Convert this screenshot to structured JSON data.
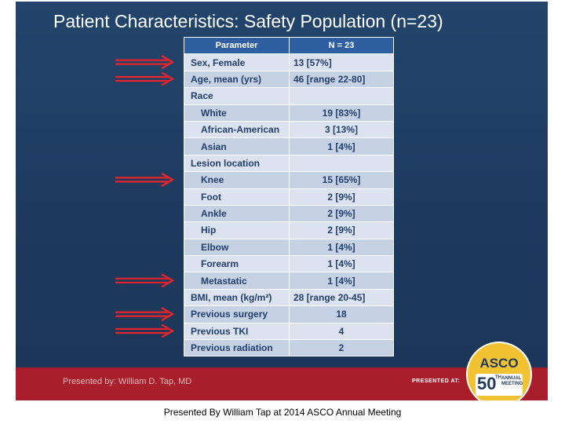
{
  "slide": {
    "title": "Patient Characteristics:  Safety Population (n=23)",
    "table": {
      "headers": {
        "parameter": "Parameter",
        "value": "N = 23"
      },
      "rows": [
        {
          "label": "Sex, Female",
          "value": "13 [57%]",
          "indent": false,
          "value_align": "left"
        },
        {
          "label": "Age, mean (yrs)",
          "value": "46 [range 22-80]",
          "indent": false,
          "value_align": "left"
        },
        {
          "label": "Race",
          "value": "",
          "indent": false,
          "value_align": "center"
        },
        {
          "label": "White",
          "value": "19 [83%]",
          "indent": true,
          "value_align": "center"
        },
        {
          "label": "African-American",
          "value": "3 [13%]",
          "indent": true,
          "value_align": "center"
        },
        {
          "label": "Asian",
          "value": "1 [4%]",
          "indent": true,
          "value_align": "center"
        },
        {
          "label": "Lesion location",
          "value": "",
          "indent": false,
          "value_align": "center"
        },
        {
          "label": "Knee",
          "value": "15 [65%]",
          "indent": true,
          "value_align": "center"
        },
        {
          "label": "Foot",
          "value": "2 [9%]",
          "indent": true,
          "value_align": "center"
        },
        {
          "label": "Ankle",
          "value": "2 [9%]",
          "indent": true,
          "value_align": "center"
        },
        {
          "label": "Hip",
          "value": "2 [9%]",
          "indent": true,
          "value_align": "center"
        },
        {
          "label": "Elbow",
          "value": "1 [4%]",
          "indent": true,
          "value_align": "center"
        },
        {
          "label": "Forearm",
          "value": "1 [4%]",
          "indent": true,
          "value_align": "center"
        },
        {
          "label": "Metastatic",
          "value": "1 [4%]",
          "indent": true,
          "value_align": "center"
        },
        {
          "label": "BMI, mean (kg/m²)",
          "value": "28 [range 20-45]",
          "indent": false,
          "value_align": "left"
        },
        {
          "label": "Previous surgery",
          "value": "18",
          "indent": false,
          "value_align": "center"
        },
        {
          "label": "Previous TKI",
          "value": "4",
          "indent": false,
          "value_align": "center"
        },
        {
          "label": "Previous radiation",
          "value": "2",
          "indent": false,
          "value_align": "center"
        }
      ]
    },
    "arrow_color": "#e8232a",
    "footer": {
      "presented_by": "Presented by: William D. Tap, MD",
      "presented_at": "PRESENTED AT:",
      "asco": {
        "name": "ASCO",
        "number": "50",
        "ordinal": "TH",
        "annual": "ANNUAL",
        "meeting": "MEETING"
      }
    }
  },
  "caption": "Presented By William Tap at 2014 ASCO Annual Meeting"
}
